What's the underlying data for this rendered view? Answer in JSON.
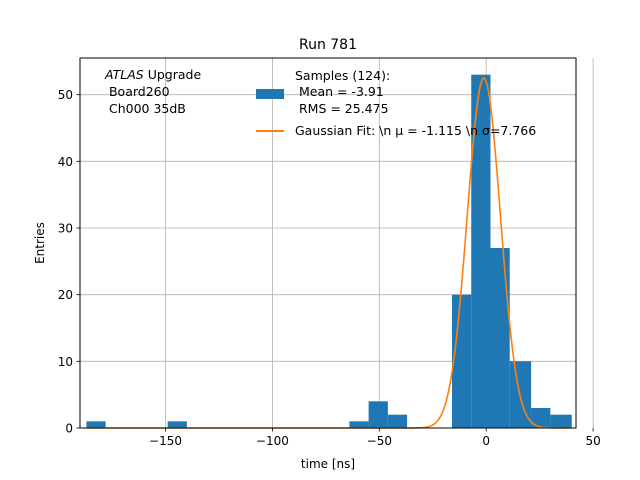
{
  "chart_data": {
    "type": "bar",
    "title": "Run 781",
    "xlabel": "time [ns]",
    "ylabel": "Entries",
    "xlim": [
      -190,
      42
    ],
    "ylim": [
      0,
      55.5
    ],
    "xticks": [
      -150,
      -100,
      -50,
      0,
      50
    ],
    "xtick_labels": [
      "−150",
      "−100",
      "−50",
      "0",
      "50"
    ],
    "yticks": [
      0,
      10,
      20,
      30,
      40,
      50
    ],
    "ytick_labels": [
      "0",
      "10",
      "20",
      "30",
      "40",
      "50"
    ],
    "grid": true,
    "annotation": {
      "line1_italic": "ATLAS",
      "line1_rest": " Upgrade",
      "line2": " Board260",
      "line3": " Ch000 35dB"
    },
    "legend": {
      "placement": "top-right",
      "samples_line1": "Samples (124):",
      "samples_line2": " Mean = -3.91",
      "samples_line3": " RMS = 25.475",
      "fit_label": "Gaussian Fit: \\n μ = -1.115 \\n σ=7.766"
    },
    "histogram": {
      "name": "Samples (124)",
      "color": "#1f77b4",
      "bins": [
        {
          "left": -187,
          "right": -178,
          "count": 1
        },
        {
          "left": -149,
          "right": -140,
          "count": 1
        },
        {
          "left": -64,
          "right": -55,
          "count": 1
        },
        {
          "left": -55,
          "right": -46,
          "count": 4
        },
        {
          "left": -46,
          "right": -37,
          "count": 2
        },
        {
          "left": -16,
          "right": -7,
          "count": 20
        },
        {
          "left": -7,
          "right": 2,
          "count": 53
        },
        {
          "left": 2,
          "right": 11,
          "count": 27
        },
        {
          "left": 11,
          "right": 21,
          "count": 10
        },
        {
          "left": 21,
          "right": 30,
          "count": 3
        },
        {
          "left": 30,
          "right": 40,
          "count": 2
        }
      ]
    },
    "fit": {
      "name": "Gaussian Fit",
      "color": "#ff7f0e",
      "amplitude": 52.5,
      "mu": -1.115,
      "sigma": 7.766,
      "x_range": [
        -187,
        40
      ]
    }
  }
}
